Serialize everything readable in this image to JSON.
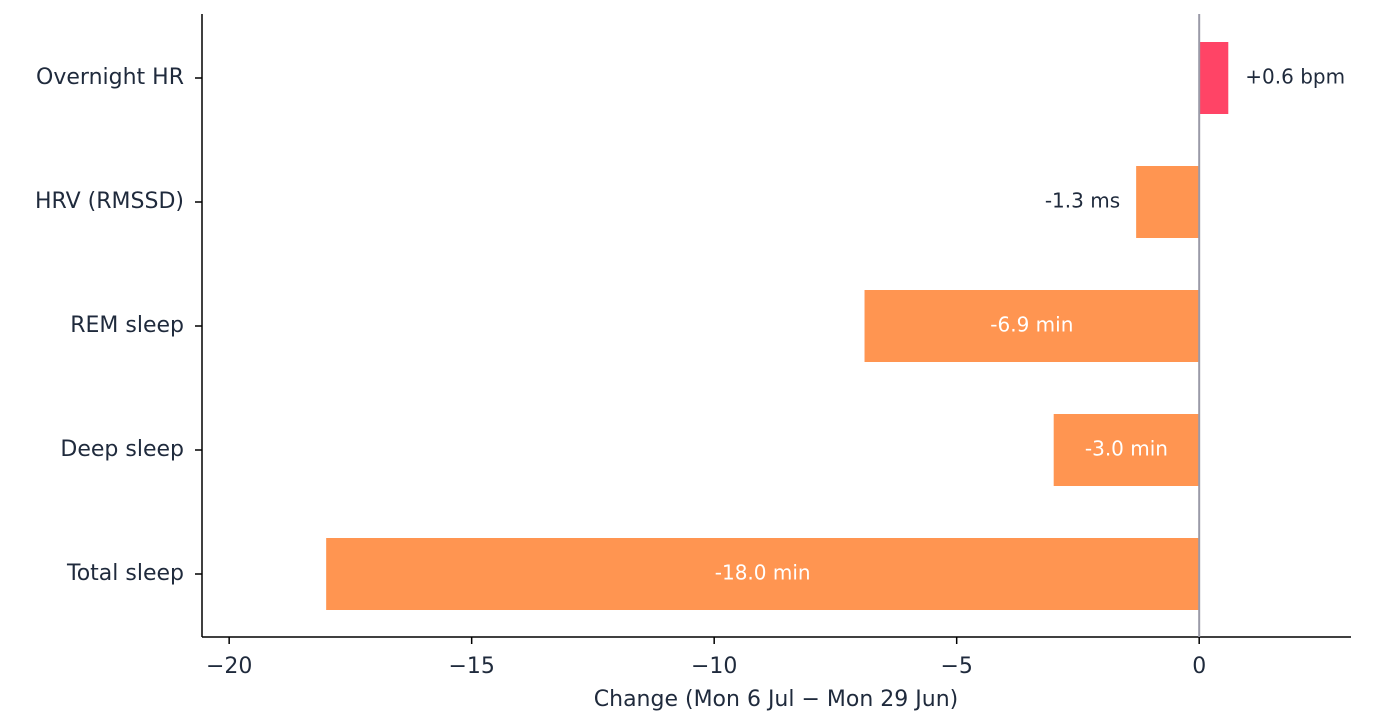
{
  "chart_data": {
    "type": "barh",
    "xlabel": "Change (Mon 6 Jul − Mon 29 Jun)",
    "categories": [
      "Overnight HR",
      "HRV (RMSSD)",
      "REM sleep",
      "Deep sleep",
      "Total sleep"
    ],
    "values": [
      0.6,
      -1.3,
      -6.9,
      -3.0,
      -18.0
    ],
    "value_labels": [
      "+0.6 bpm",
      "-1.3 ms",
      "-6.9 min",
      "-3.0 min",
      "-18.0 min"
    ],
    "colors": [
      "#ff4466",
      "#ff9551",
      "#ff9551",
      "#ff9551",
      "#ff9551"
    ],
    "xlim": [
      -20.56,
      3.13
    ],
    "xticks": [
      {
        "value": -20,
        "label": "−20"
      },
      {
        "value": -15,
        "label": "−15"
      },
      {
        "value": -10,
        "label": "−10"
      },
      {
        "value": -5,
        "label": "−5"
      },
      0
    ],
    "grid": false
  }
}
